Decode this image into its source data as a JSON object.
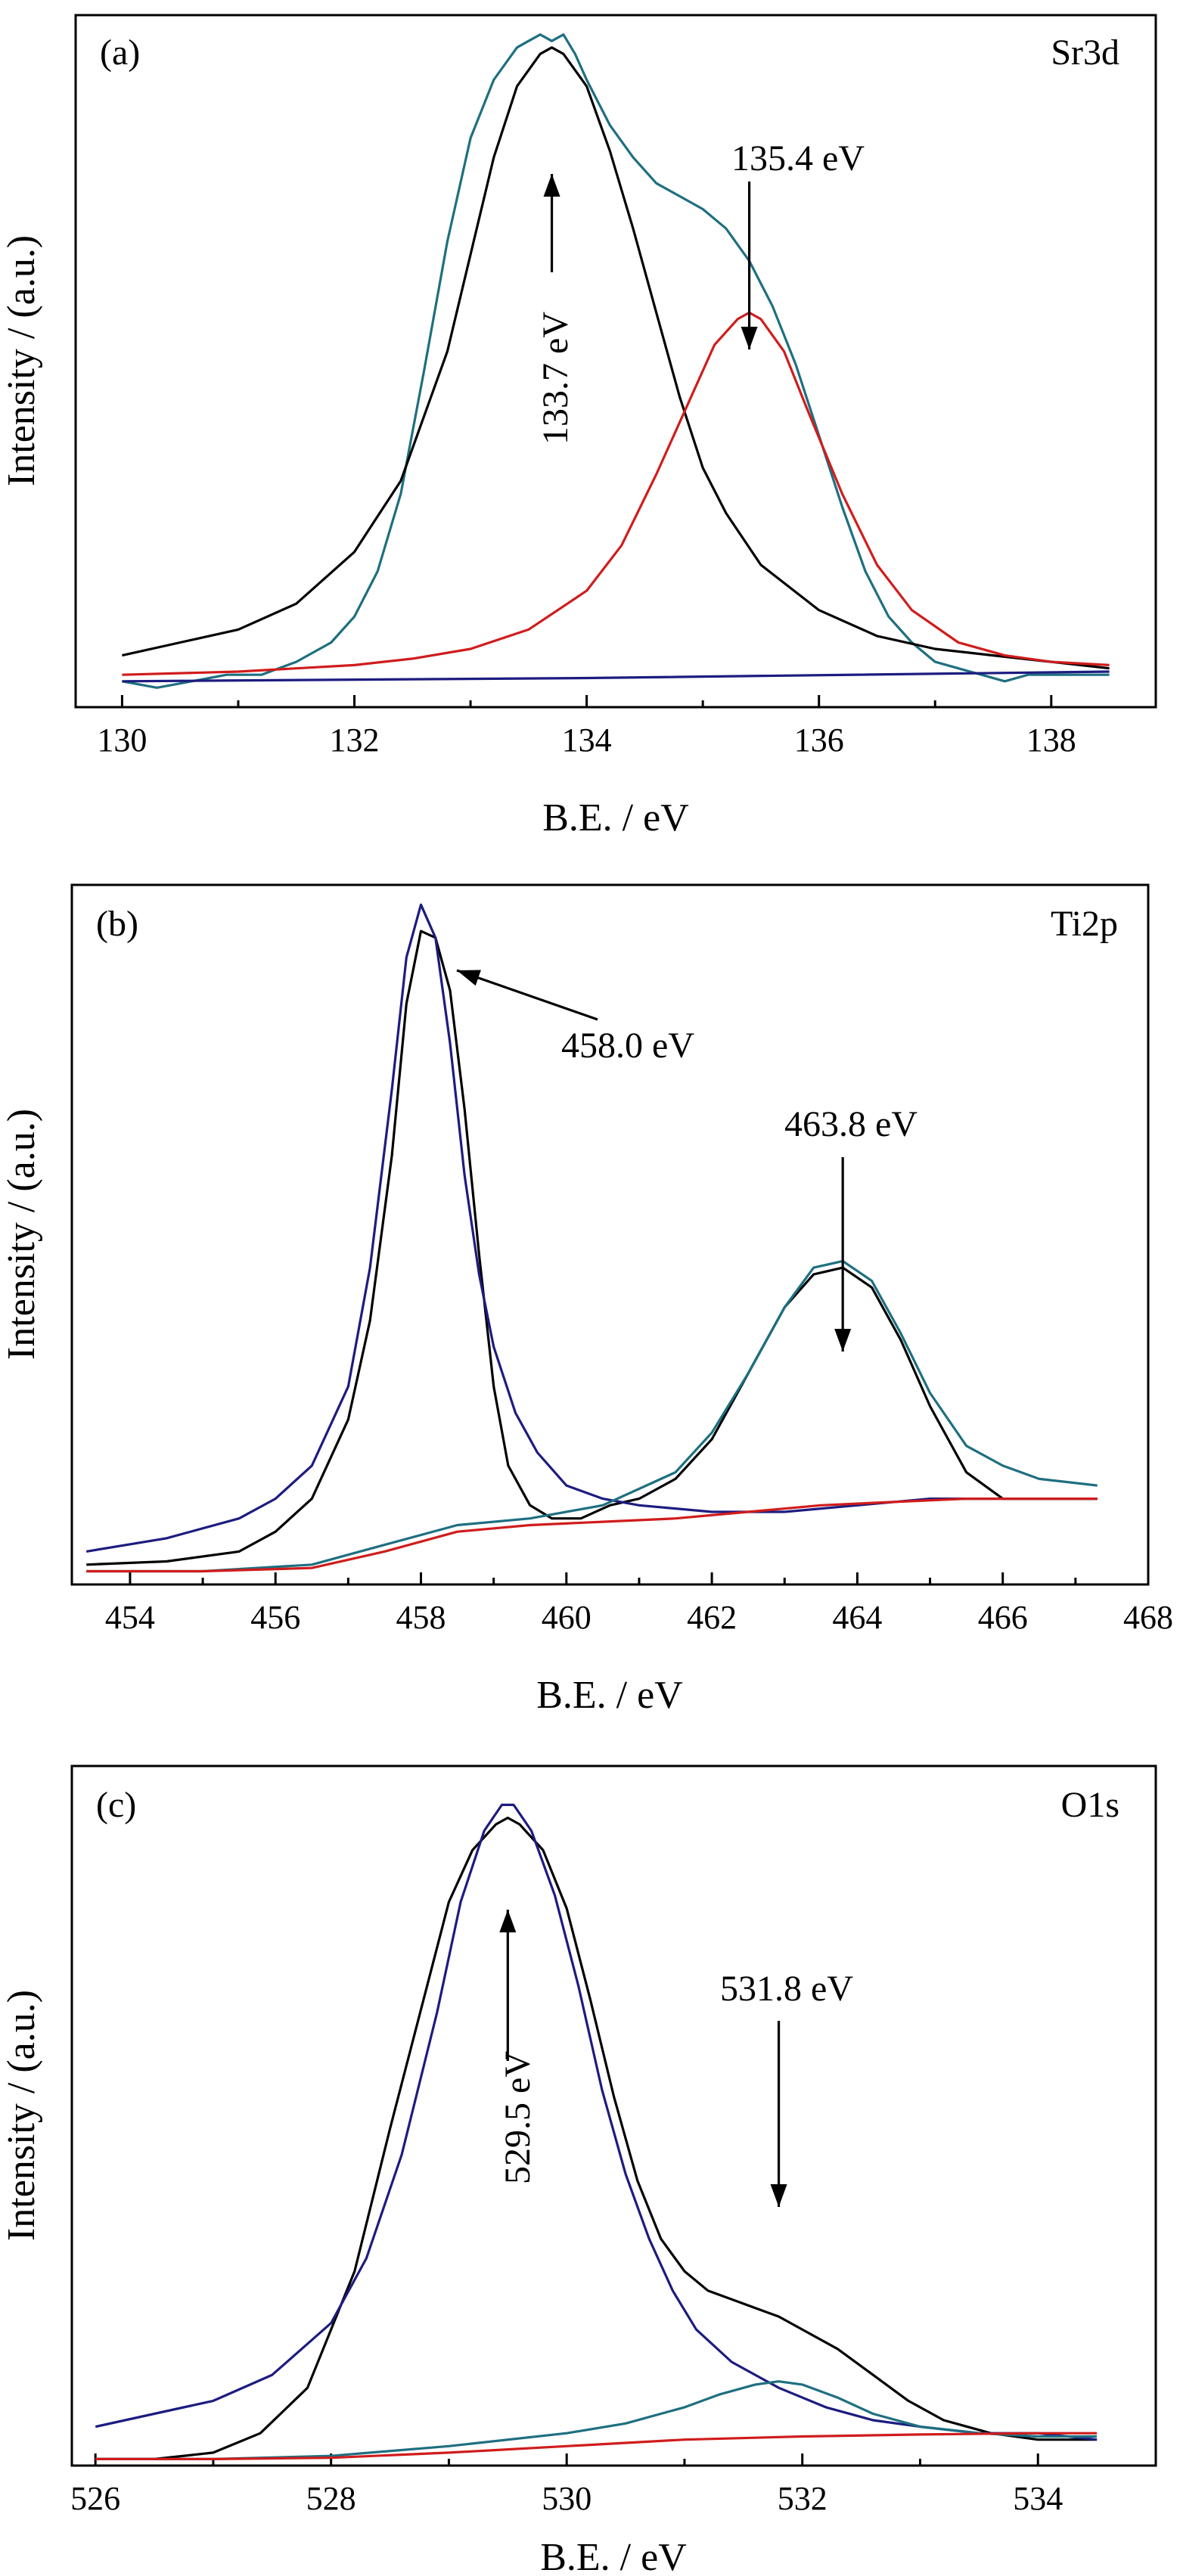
{
  "chart_data": [
    {
      "type": "line",
      "panel_label": "(a)",
      "element": "Sr3d",
      "xlabel": "B.E. / eV",
      "ylabel": "Intensity / (a.u.)",
      "xlim": [
        129.6,
        138.9
      ],
      "ylim": [
        0,
        1.07
      ],
      "xticks": [
        130,
        132,
        134,
        136,
        138
      ],
      "tick_labels": [
        "130",
        "132",
        "134",
        "136",
        "138"
      ],
      "series": [
        {
          "color": "#1e6f80",
          "x": [
            130.0,
            130.3,
            130.6,
            130.9,
            131.2,
            131.5,
            131.8,
            132.0,
            132.2,
            132.4,
            132.6,
            132.8,
            133.0,
            133.2,
            133.4,
            133.5,
            133.6,
            133.7,
            133.8,
            133.9,
            134.0,
            134.2,
            134.4,
            134.6,
            134.8,
            135.0,
            135.2,
            135.4,
            135.6,
            135.8,
            136.0,
            136.2,
            136.4,
            136.6,
            136.8,
            137.0,
            137.2,
            137.4,
            137.6,
            137.8,
            138.0,
            138.2,
            138.5
          ],
          "y": [
            0.04,
            0.03,
            0.04,
            0.05,
            0.05,
            0.07,
            0.1,
            0.14,
            0.21,
            0.33,
            0.52,
            0.72,
            0.88,
            0.97,
            1.02,
            1.03,
            1.04,
            1.03,
            1.04,
            1.01,
            0.97,
            0.9,
            0.85,
            0.81,
            0.79,
            0.77,
            0.74,
            0.69,
            0.62,
            0.53,
            0.42,
            0.31,
            0.21,
            0.14,
            0.1,
            0.07,
            0.06,
            0.05,
            0.04,
            0.05,
            0.05,
            0.05,
            0.05
          ]
        },
        {
          "color": "#000000",
          "x": [
            130.0,
            130.5,
            131.0,
            131.5,
            132.0,
            132.4,
            132.8,
            133.0,
            133.2,
            133.4,
            133.6,
            133.7,
            133.8,
            134.0,
            134.2,
            134.4,
            134.6,
            134.8,
            135.0,
            135.2,
            135.5,
            136.0,
            136.5,
            137.0,
            137.5,
            138.0,
            138.5
          ],
          "y": [
            0.08,
            0.1,
            0.12,
            0.16,
            0.24,
            0.35,
            0.55,
            0.7,
            0.85,
            0.96,
            1.01,
            1.02,
            1.01,
            0.96,
            0.86,
            0.74,
            0.61,
            0.48,
            0.37,
            0.3,
            0.22,
            0.15,
            0.11,
            0.09,
            0.08,
            0.07,
            0.06
          ]
        },
        {
          "color": "#d01c1c",
          "x": [
            130.0,
            131.0,
            132.0,
            132.5,
            133.0,
            133.5,
            134.0,
            134.3,
            134.6,
            134.9,
            135.1,
            135.3,
            135.4,
            135.5,
            135.7,
            135.9,
            136.2,
            136.5,
            136.8,
            137.2,
            137.6,
            138.0,
            138.5
          ],
          "y": [
            0.05,
            0.055,
            0.065,
            0.075,
            0.09,
            0.12,
            0.18,
            0.25,
            0.36,
            0.48,
            0.56,
            0.6,
            0.61,
            0.6,
            0.55,
            0.46,
            0.33,
            0.22,
            0.15,
            0.1,
            0.08,
            0.07,
            0.065
          ]
        },
        {
          "color": "#1c1c80",
          "x": [
            130.0,
            134.0,
            138.5
          ],
          "y": [
            0.04,
            0.045,
            0.055
          ]
        }
      ],
      "annotations": [
        {
          "text": "133.7 eV",
          "x": 133.7,
          "y": 0.88,
          "vertical": true
        },
        {
          "text": "135.4 eV",
          "x": 135.4,
          "y": 0.62
        }
      ]
    },
    {
      "type": "line",
      "panel_label": "(b)",
      "element": "Ti2p",
      "xlabel": "B.E. / eV",
      "ylabel": "Intensity / (a.u.)",
      "xlim": [
        453.2,
        468.0
      ],
      "ylim": [
        0,
        1.06
      ],
      "xticks": [
        454,
        456,
        458,
        460,
        462,
        464,
        466,
        468
      ],
      "tick_labels": [
        "454",
        "456",
        "458",
        "460",
        "462",
        "464",
        "466",
        "468"
      ],
      "series": [
        {
          "color": "#000000",
          "x": [
            453.4,
            454.5,
            455.5,
            456.0,
            456.5,
            457.0,
            457.3,
            457.6,
            457.8,
            458.0,
            458.2,
            458.4,
            458.6,
            458.8,
            459.0,
            459.2,
            459.5,
            459.8,
            460.2,
            460.6,
            461.0,
            461.5,
            462.0,
            462.5,
            463.0,
            463.4,
            463.8,
            464.2,
            464.6,
            465.0,
            465.5,
            466.0,
            466.5,
            467.3
          ],
          "y": [
            0.03,
            0.035,
            0.05,
            0.08,
            0.13,
            0.25,
            0.4,
            0.65,
            0.88,
            0.99,
            0.98,
            0.9,
            0.72,
            0.5,
            0.3,
            0.18,
            0.12,
            0.1,
            0.1,
            0.12,
            0.13,
            0.16,
            0.22,
            0.32,
            0.42,
            0.47,
            0.48,
            0.45,
            0.37,
            0.27,
            0.17,
            0.13,
            0.13,
            0.13
          ]
        },
        {
          "color": "#1c1c80",
          "x": [
            453.4,
            454.5,
            455.5,
            456.0,
            456.5,
            457.0,
            457.3,
            457.6,
            457.8,
            458.0,
            458.2,
            458.4,
            458.6,
            458.8,
            459.0,
            459.3,
            459.6,
            460.0,
            460.5,
            461.0,
            462.0,
            463.0,
            464.0,
            465.0,
            466.0,
            467.3
          ],
          "y": [
            0.05,
            0.07,
            0.1,
            0.13,
            0.18,
            0.3,
            0.48,
            0.75,
            0.95,
            1.03,
            0.98,
            0.82,
            0.62,
            0.47,
            0.36,
            0.26,
            0.2,
            0.15,
            0.13,
            0.12,
            0.11,
            0.11,
            0.12,
            0.13,
            0.13,
            0.13
          ]
        },
        {
          "color": "#1e6f80",
          "x": [
            453.4,
            455.0,
            456.5,
            457.5,
            458.5,
            459.5,
            460.5,
            461.5,
            462.0,
            462.5,
            463.0,
            463.4,
            463.8,
            464.2,
            464.6,
            465.0,
            465.5,
            466.0,
            466.5,
            467.3
          ],
          "y": [
            0.02,
            0.02,
            0.03,
            0.06,
            0.09,
            0.1,
            0.12,
            0.17,
            0.23,
            0.32,
            0.42,
            0.48,
            0.49,
            0.46,
            0.38,
            0.29,
            0.21,
            0.18,
            0.16,
            0.15
          ]
        },
        {
          "color": "#d01c1c",
          "x": [
            453.4,
            455.0,
            456.5,
            457.5,
            458.5,
            459.5,
            460.5,
            461.5,
            462.5,
            463.5,
            464.5,
            465.5,
            466.5,
            467.3
          ],
          "y": [
            0.02,
            0.02,
            0.025,
            0.05,
            0.08,
            0.09,
            0.095,
            0.1,
            0.11,
            0.12,
            0.125,
            0.13,
            0.13,
            0.13
          ]
        }
      ],
      "annotations": [
        {
          "text": "458.0 eV",
          "x": 458.15,
          "y": 0.97
        },
        {
          "text": "463.8 eV",
          "x": 463.8,
          "y": 0.5
        }
      ]
    },
    {
      "type": "line",
      "panel_label": "(c)",
      "element": "O1s",
      "xlabel": "B.E. / eV",
      "ylabel": "Intensity / (a.u.)",
      "xlim": [
        525.8,
        535.0
      ],
      "ylim": [
        0,
        1.08
      ],
      "xticks": [
        526,
        528,
        530,
        532,
        534
      ],
      "tick_labels": [
        "526",
        "528",
        "530",
        "532",
        "534"
      ],
      "series": [
        {
          "color": "#000000",
          "x": [
            526.0,
            526.5,
            527.0,
            527.4,
            527.8,
            528.2,
            528.5,
            528.8,
            529.0,
            529.2,
            529.4,
            529.5,
            529.6,
            529.8,
            530.0,
            530.2,
            530.4,
            530.6,
            530.8,
            531.0,
            531.2,
            531.5,
            531.8,
            532.0,
            532.3,
            532.6,
            532.9,
            533.2,
            533.6,
            534.0,
            534.5
          ],
          "y": [
            0.01,
            0.01,
            0.02,
            0.05,
            0.12,
            0.3,
            0.52,
            0.73,
            0.87,
            0.95,
            0.99,
            1.0,
            0.99,
            0.95,
            0.86,
            0.72,
            0.57,
            0.44,
            0.35,
            0.3,
            0.27,
            0.25,
            0.23,
            0.21,
            0.18,
            0.14,
            0.1,
            0.07,
            0.05,
            0.04,
            0.04
          ]
        },
        {
          "color": "#1c1c80",
          "x": [
            526.0,
            526.5,
            527.0,
            527.5,
            528.0,
            528.3,
            528.6,
            528.9,
            529.1,
            529.3,
            529.45,
            529.55,
            529.7,
            529.9,
            530.1,
            530.3,
            530.5,
            530.7,
            530.9,
            531.1,
            531.4,
            531.8,
            532.2,
            532.6,
            533.0,
            533.5,
            534.0,
            534.5
          ],
          "y": [
            0.06,
            0.08,
            0.1,
            0.14,
            0.22,
            0.32,
            0.48,
            0.7,
            0.87,
            0.98,
            1.02,
            1.02,
            0.98,
            0.88,
            0.74,
            0.58,
            0.45,
            0.35,
            0.27,
            0.21,
            0.16,
            0.12,
            0.09,
            0.07,
            0.06,
            0.05,
            0.05,
            0.04
          ]
        },
        {
          "color": "#1e6f80",
          "x": [
            526.0,
            527.0,
            528.0,
            529.0,
            530.0,
            530.5,
            531.0,
            531.3,
            531.6,
            531.8,
            532.0,
            532.3,
            532.6,
            533.0,
            533.5,
            534.0,
            534.5
          ],
          "y": [
            0.01,
            0.01,
            0.015,
            0.03,
            0.05,
            0.065,
            0.09,
            0.11,
            0.125,
            0.13,
            0.125,
            0.105,
            0.08,
            0.06,
            0.05,
            0.045,
            0.045
          ]
        },
        {
          "color": "#d01c1c",
          "x": [
            526.0,
            527.0,
            528.0,
            529.0,
            530.0,
            530.5,
            531.0,
            532.0,
            533.0,
            534.0,
            534.5
          ],
          "y": [
            0.01,
            0.01,
            0.012,
            0.02,
            0.03,
            0.035,
            0.04,
            0.045,
            0.048,
            0.05,
            0.05
          ]
        }
      ],
      "annotations": [
        {
          "text": "529.5 eV",
          "x": 529.5,
          "y": 0.88,
          "vertical": true
        },
        {
          "text": "531.8 eV",
          "x": 531.8,
          "y": 0.13
        }
      ]
    }
  ]
}
